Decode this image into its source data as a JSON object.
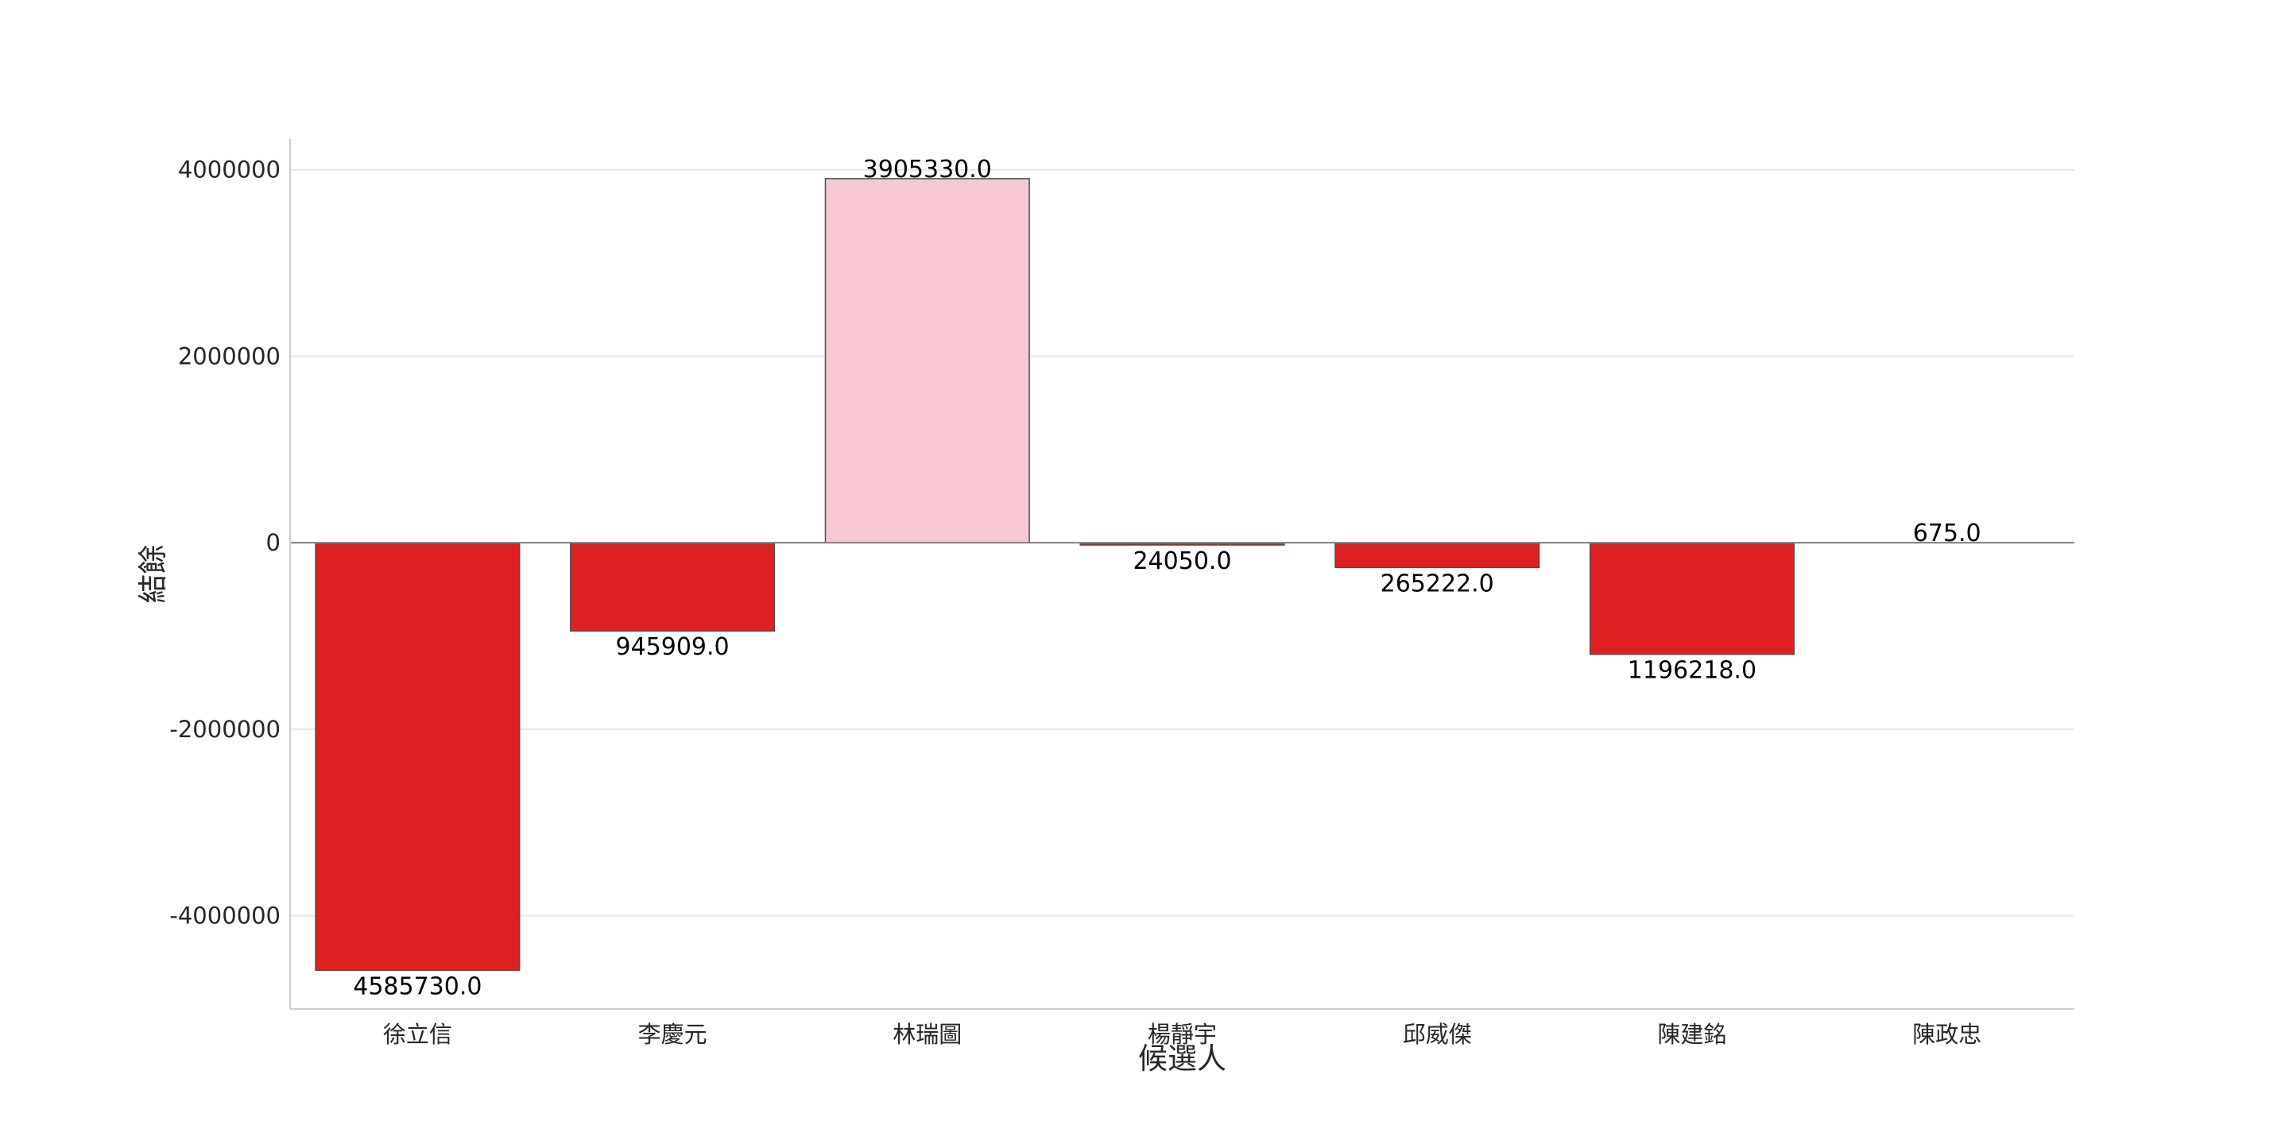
{
  "chart_data": {
    "type": "bar",
    "categories": [
      "徐立信",
      "李慶元",
      "林瑞圖",
      "楊靜宇",
      "邱威傑",
      "陳建銘",
      "陳政忠"
    ],
    "values": [
      -4585730.0,
      -945909.0,
      3905330.0,
      -24050.0,
      -265222.0,
      -1196218.0,
      675.0
    ],
    "data_labels": [
      "4585730.0",
      "945909.0",
      "3905330.0",
      "24050.0",
      "265222.0",
      "1196218.0",
      "675.0"
    ],
    "xlabel": "候選人",
    "ylabel": "結餘",
    "ylim": [
      -5000000,
      4330000
    ],
    "yticks": [
      -4000000,
      -2000000,
      0,
      2000000,
      4000000
    ],
    "ytick_labels": [
      "-4000000",
      "-2000000",
      "0",
      "2000000",
      "4000000"
    ],
    "grid": "horizontal",
    "colors": {
      "positive": "#f7c8d2",
      "negative": "#df2020",
      "bar_edge": "#4d4d4d",
      "grid": "#e6e6e6",
      "spine": "#cccccc",
      "zero_line": "#808080"
    }
  }
}
